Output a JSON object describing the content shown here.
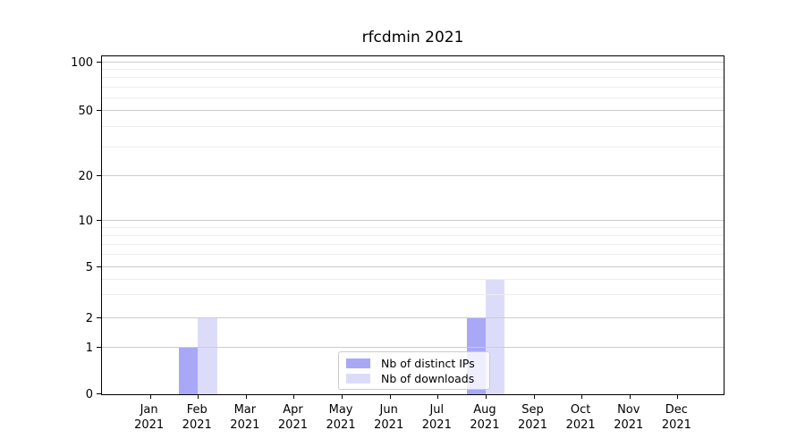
{
  "title": "rfcdmin 2021",
  "chart_data": {
    "type": "bar",
    "title": "rfcdmin 2021",
    "categories": [
      "Jan 2021",
      "Feb 2021",
      "Mar 2021",
      "Apr 2021",
      "May 2021",
      "Jun 2021",
      "Jul 2021",
      "Aug 2021",
      "Sep 2021",
      "Oct 2021",
      "Nov 2021",
      "Dec 2021"
    ],
    "x_tick_labels": [
      {
        "line1": "Jan",
        "line2": "2021"
      },
      {
        "line1": "Feb",
        "line2": "2021"
      },
      {
        "line1": "Mar",
        "line2": "2021"
      },
      {
        "line1": "Apr",
        "line2": "2021"
      },
      {
        "line1": "May",
        "line2": "2021"
      },
      {
        "line1": "Jun",
        "line2": "2021"
      },
      {
        "line1": "Jul",
        "line2": "2021"
      },
      {
        "line1": "Aug",
        "line2": "2021"
      },
      {
        "line1": "Sep",
        "line2": "2021"
      },
      {
        "line1": "Oct",
        "line2": "2021"
      },
      {
        "line1": "Nov",
        "line2": "2021"
      },
      {
        "line1": "Dec",
        "line2": "2021"
      }
    ],
    "series": [
      {
        "name": "Nb of distinct IPs",
        "color": "#a8a8f7",
        "values": [
          0,
          1,
          0,
          0,
          0,
          0,
          0,
          2,
          0,
          0,
          0,
          0
        ]
      },
      {
        "name": "Nb of downloads",
        "color": "#dcdcfa",
        "values": [
          0,
          2,
          0,
          0,
          0,
          0,
          0,
          4,
          0,
          0,
          0,
          0
        ]
      }
    ],
    "y_axis": {
      "scale": "symlog",
      "major_ticks": [
        0,
        1,
        2,
        5,
        10,
        20,
        50,
        100
      ],
      "minor_ticks": [
        3,
        4,
        6,
        7,
        8,
        9,
        30,
        40,
        60,
        70,
        80,
        90
      ],
      "scale_anchors": [
        [
          0,
          0
        ],
        [
          1,
          0.1368
        ],
        [
          2,
          0.2245
        ],
        [
          5,
          0.3745
        ],
        [
          10,
          0.5105
        ],
        [
          20,
          0.6421
        ],
        [
          50,
          0.8342
        ],
        [
          100,
          0.9776
        ]
      ],
      "grid": true
    },
    "legend": {
      "location": "lower center"
    }
  },
  "colors": {
    "major_grid": "#cccccc",
    "minor_grid": "#ededed",
    "spine": "#000000",
    "text": "#000000"
  }
}
